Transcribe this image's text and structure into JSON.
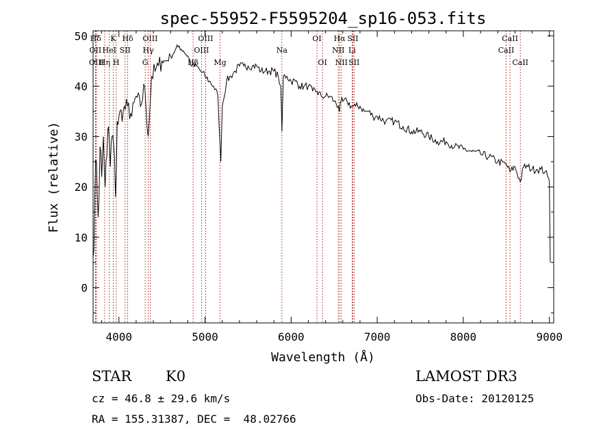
{
  "chart_data": {
    "type": "line",
    "title": "spec-55952-F5595204_sp16-053.fits",
    "xlabel": "Wavelength (Å)",
    "ylabel": "Flux (relative)",
    "xlim": [
      3700,
      9050
    ],
    "ylim": [
      -7,
      51
    ],
    "x_ticks": [
      4000,
      5000,
      6000,
      7000,
      8000,
      9000
    ],
    "y_ticks": [
      0,
      10,
      20,
      30,
      40,
      50
    ],
    "x_tick_labels": [
      "4000",
      "5000",
      "6000",
      "7000",
      "8000",
      "9000"
    ],
    "y_tick_labels": [
      "0",
      "10",
      "20",
      "30",
      "40",
      "50"
    ],
    "series": [
      {
        "name": "flux",
        "x": [
          3700,
          3720,
          3740,
          3760,
          3780,
          3800,
          3820,
          3840,
          3860,
          3880,
          3900,
          3920,
          3940,
          3960,
          3980,
          4000,
          4050,
          4100,
          4150,
          4200,
          4250,
          4300,
          4340,
          4380,
          4420,
          4460,
          4500,
          4550,
          4600,
          4650,
          4700,
          4750,
          4800,
          4850,
          4900,
          4950,
          5000,
          5050,
          5100,
          5150,
          5170,
          5183,
          5200,
          5250,
          5300,
          5350,
          5400,
          5450,
          5500,
          5550,
          5600,
          5650,
          5700,
          5750,
          5800,
          5850,
          5880,
          5893,
          5910,
          5950,
          6000,
          6050,
          6100,
          6150,
          6200,
          6250,
          6300,
          6350,
          6400,
          6450,
          6500,
          6550,
          6563,
          6580,
          6600,
          6650,
          6700,
          6750,
          6800,
          6850,
          6900,
          6950,
          7000,
          7100,
          7200,
          7300,
          7400,
          7500,
          7600,
          7700,
          7800,
          7900,
          8000,
          8100,
          8200,
          8300,
          8400,
          8500,
          8542,
          8600,
          8662,
          8700,
          8750,
          8800,
          8850,
          8900,
          8950,
          8980,
          9000,
          9010
        ],
        "values": [
          6,
          18,
          25,
          14,
          28,
          22,
          30,
          20,
          26,
          32,
          24,
          30,
          28,
          18,
          33,
          34,
          35,
          36,
          34,
          38,
          36,
          40,
          30,
          42,
          43,
          44,
          45,
          45,
          46,
          47,
          48,
          47,
          46,
          44,
          44,
          43,
          42,
          41,
          40,
          38,
          30,
          25,
          36,
          41,
          42,
          43,
          44,
          44,
          44,
          44,
          44,
          43,
          43,
          43,
          43,
          42,
          40,
          31,
          42,
          42,
          41,
          41,
          40,
          40,
          40,
          39,
          39,
          38,
          38,
          38,
          37,
          36,
          35,
          37,
          37,
          37,
          36,
          36,
          36,
          35,
          35,
          34,
          34,
          33,
          33,
          32,
          31,
          31,
          30,
          29,
          29,
          28,
          27.5,
          27,
          26.5,
          26,
          25,
          24.5,
          23,
          24,
          21,
          24,
          24,
          23.5,
          23.5,
          23.5,
          23,
          22,
          21,
          5
        ]
      }
    ],
    "lines": [
      {
        "name": "Hδ",
        "wave": 3730,
        "row": 0
      },
      {
        "name": "OII",
        "wave": 3727,
        "row": 1
      },
      {
        "name": "OIII",
        "wave": 3740,
        "row": 2
      },
      {
        "name": "K",
        "wave": 3934,
        "row": 0
      },
      {
        "name": "HeI",
        "wave": 3889,
        "row": 1
      },
      {
        "name": "Hη",
        "wave": 3835,
        "row": 2
      },
      {
        "name": "Hδ",
        "wave": 4102,
        "row": 0
      },
      {
        "name": "SII",
        "wave": 4072,
        "row": 1
      },
      {
        "name": "H",
        "wave": 3969,
        "row": 2
      },
      {
        "name": "OIII",
        "wave": 4363,
        "row": 0
      },
      {
        "name": "Hγ",
        "wave": 4341,
        "row": 1
      },
      {
        "name": "G",
        "wave": 4305,
        "row": 2
      },
      {
        "name": "OIII",
        "wave": 5007,
        "row": 0
      },
      {
        "name": "OIII",
        "wave": 4959,
        "row": 1
      },
      {
        "name": "Hβ",
        "wave": 4861,
        "row": 2
      },
      {
        "name": "Mg",
        "wave": 5175,
        "row": 2
      },
      {
        "name": "Na",
        "wave": 5893,
        "row": 1
      },
      {
        "name": "OI",
        "wave": 6300,
        "row": 0
      },
      {
        "name": "OI",
        "wave": 6364,
        "row": 2
      },
      {
        "name": "Hα",
        "wave": 6563,
        "row": 0
      },
      {
        "name": "NII",
        "wave": 6548,
        "row": 1
      },
      {
        "name": "NII",
        "wave": 6584,
        "row": 2
      },
      {
        "name": "SII",
        "wave": 6717,
        "row": 0
      },
      {
        "name": "Li",
        "wave": 6708,
        "row": 1
      },
      {
        "name": "SII",
        "wave": 6731,
        "row": 2
      },
      {
        "name": "CaII",
        "wave": 8542,
        "row": 0
      },
      {
        "name": "CaII",
        "wave": 8498,
        "row": 1
      },
      {
        "name": "CaII",
        "wave": 8662,
        "row": 2
      }
    ]
  },
  "info": {
    "class_type": "STAR",
    "subclass": "K0",
    "survey": "LAMOST DR3",
    "cz": "cz = 46.8 ± 29.6 km/s",
    "obs_date": "Obs-Date: 20120125",
    "radec": "RA = 155.31387, DEC =  48.02766"
  },
  "colors": {
    "line_marker": "#b22222",
    "spectrum": "#000000"
  }
}
